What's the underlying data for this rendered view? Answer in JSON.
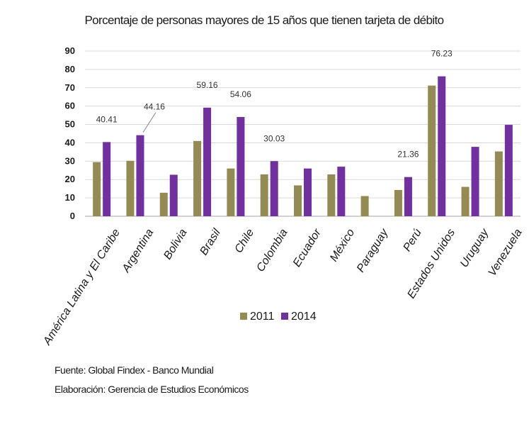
{
  "chart_data": {
    "type": "bar",
    "title": "Porcentaje de personas mayores de 15 años que tienen tarjeta de débito",
    "categories": [
      "América Latina y El Caribe",
      "Argentina",
      "Bolivia",
      "Brasil",
      "Chile",
      "Colombia",
      "Ecuador",
      "México",
      "Paraguay",
      "Perú",
      "Estados Unidos",
      "Uruguay",
      "Venezuela"
    ],
    "series": [
      {
        "name": "2011",
        "color": "#948A54",
        "values": [
          29.5,
          30.2,
          12.8,
          41.0,
          26.0,
          22.8,
          16.8,
          22.8,
          11.0,
          14.3,
          71.2,
          16.0,
          35.3
        ]
      },
      {
        "name": "2014",
        "color": "#7030A0",
        "values": [
          40.41,
          44.16,
          22.6,
          59.16,
          54.06,
          30.03,
          26.0,
          27.0,
          null,
          21.36,
          76.23,
          37.8,
          49.8
        ]
      }
    ],
    "data_labels": [
      {
        "category_index": 0,
        "series_index": 1,
        "text": "40.41"
      },
      {
        "category_index": 1,
        "series_index": 1,
        "text": "44.16"
      },
      {
        "category_index": 3,
        "series_index": 1,
        "text": "59.16"
      },
      {
        "category_index": 4,
        "series_index": 1,
        "text": "54.06"
      },
      {
        "category_index": 5,
        "series_index": 1,
        "text": "30.03"
      },
      {
        "category_index": 9,
        "series_index": 1,
        "text": "21.36"
      },
      {
        "category_index": 10,
        "series_index": 1,
        "text": "76.23"
      }
    ],
    "ylim": [
      0,
      90
    ],
    "yticks": [
      0,
      10,
      20,
      30,
      40,
      50,
      60,
      70,
      80,
      90
    ],
    "grid": true,
    "legend_position": "bottom"
  },
  "source": "Fuente: Global Findex - Banco Mundial",
  "credit": "Elaboración: Gerencia de Estudios Económicos"
}
